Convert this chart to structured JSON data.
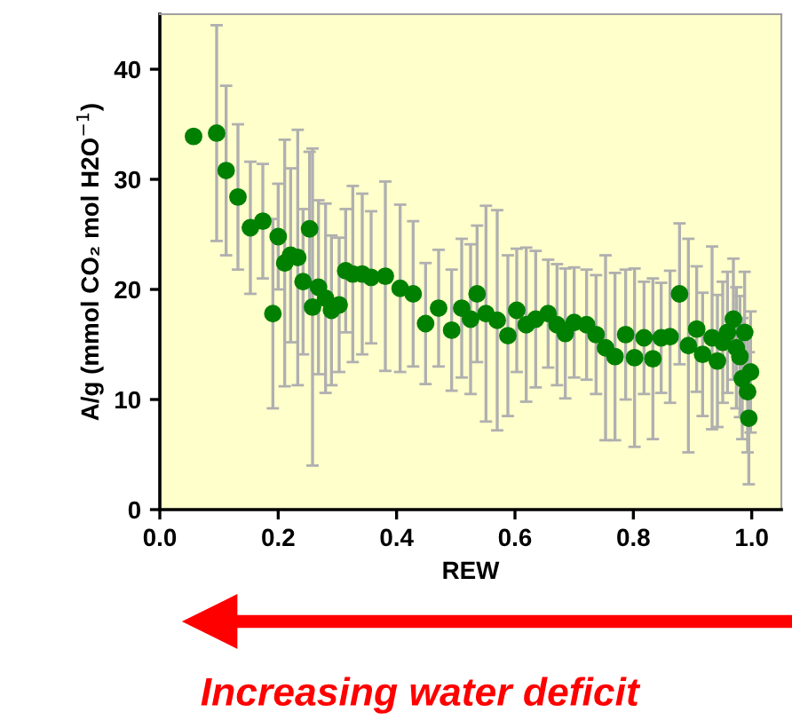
{
  "chart_data": {
    "type": "scatter",
    "xlabel": "REW",
    "ylabel": "A/g (mmol CO₂ mol H2O$^{−1}$)",
    "x": [
      0.057,
      0.096,
      0.112,
      0.132,
      0.153,
      0.174,
      0.191,
      0.2,
      0.211,
      0.221,
      0.233,
      0.242,
      0.253,
      0.258,
      0.268,
      0.28,
      0.29,
      0.303,
      0.314,
      0.326,
      0.342,
      0.357,
      0.381,
      0.406,
      0.428,
      0.449,
      0.471,
      0.493,
      0.51,
      0.525,
      0.536,
      0.551,
      0.57,
      0.588,
      0.603,
      0.619,
      0.635,
      0.656,
      0.671,
      0.685,
      0.7,
      0.721,
      0.737,
      0.753,
      0.769,
      0.787,
      0.802,
      0.818,
      0.833,
      0.847,
      0.862,
      0.878,
      0.893,
      0.907,
      0.917,
      0.933,
      0.942,
      0.951,
      0.959,
      0.969,
      0.974,
      0.98,
      0.984,
      0.988,
      0.993,
      0.995,
      0.998
    ],
    "series": [
      {
        "color": "#008000",
        "values": [
          33.9,
          34.2,
          30.8,
          28.4,
          25.6,
          26.2,
          17.8,
          24.8,
          22.4,
          23.1,
          22.9,
          20.7,
          25.5,
          18.4,
          20.2,
          19.2,
          18.1,
          18.6,
          21.7,
          21.4,
          21.4,
          21.1,
          21.2,
          20.1,
          19.6,
          16.9,
          18.3,
          16.3,
          18.3,
          17.3,
          19.6,
          17.8,
          17.2,
          15.8,
          18.1,
          16.8,
          17.3,
          17.8,
          16.8,
          16.0,
          17.0,
          16.8,
          15.9,
          14.7,
          13.9,
          15.9,
          13.8,
          15.6,
          13.7,
          15.6,
          15.7,
          19.6,
          14.9,
          16.4,
          14.1,
          15.6,
          13.5,
          15.2,
          16.1,
          17.3,
          14.7,
          13.9,
          11.9,
          16.1,
          10.7,
          8.3,
          12.5
        ],
        "errors": [
          null,
          9.8,
          7.7,
          6.6,
          6,
          5.2,
          8.6,
          4.8,
          11.2,
          7.9,
          11.6,
          6.6,
          7,
          14.4,
          7.9,
          8.6,
          6.8,
          6.1,
          5.6,
          8,
          7.3,
          6,
          8.6,
          7.6,
          6.6,
          5.5,
          5.3,
          5.5,
          6.3,
          6.8,
          6.2,
          9.8,
          10,
          7.3,
          5.6,
          7,
          6.2,
          4.9,
          5.5,
          5.9,
          5,
          5,
          5.4,
          8.4,
          7.6,
          5.9,
          8.1,
          5.1,
          7.3,
          5,
          6,
          6.4,
          9.7,
          5.7,
          5.6,
          8.3,
          6,
          5.5,
          5.5,
          5.5,
          5.5,
          5.5,
          5.5,
          5.5,
          5.5,
          6,
          5.5
        ]
      }
    ],
    "xlim": [
      0,
      1.05
    ],
    "ylim": [
      0,
      45
    ],
    "xticks": [
      {
        "value": 0,
        "label": "0.0"
      },
      {
        "value": 0.2,
        "label": "0.2"
      },
      {
        "value": 0.4,
        "label": "0.4"
      },
      {
        "value": 0.6,
        "label": "0.6"
      },
      {
        "value": 0.8,
        "label": "0.8"
      },
      {
        "value": 1.0,
        "label": "1.0"
      }
    ],
    "yticks": [
      0,
      10,
      20,
      30,
      40
    ],
    "marker": "circle",
    "grid": false,
    "annotations": [
      "Increasing water deficit"
    ]
  }
}
